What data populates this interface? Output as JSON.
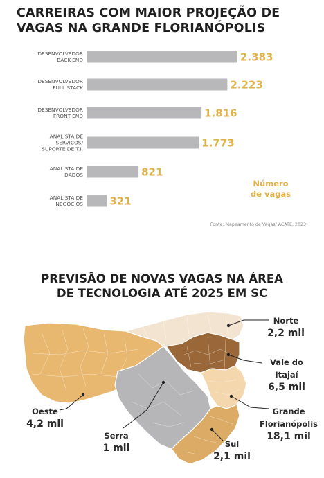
{
  "bar_chart": {
    "title_line1": "CARREIRAS COM MAIOR PROJEÇÃO DE",
    "title_line2": "VAGAS NA GRANDE FLORIANÓPOLIS",
    "legend_line1": "Número",
    "legend_line2": "de vagas",
    "source": "Fonte: Mapeamento de Vagas/ ACATE, 2023",
    "value_color": "#e0b24a",
    "bar_color": "#b8b8ba"
  },
  "map_chart": {
    "title_line1": "PREVISÃO DE NOVAS VAGAS NA ÁREA",
    "title_line2": "DE TECNOLOGIA ATÉ 2025 EM SC",
    "region_colors": {
      "Oeste": "#e8b870",
      "Serra": "#b6b6b8",
      "Norte": "#f3e4d2",
      "Vale do Itajaí": "#9a6838",
      "Grande Florianópolis": "#f4d7ad",
      "Sul": "#dcab65"
    }
  },
  "chart_data": [
    {
      "type": "bar",
      "orientation": "horizontal",
      "title": "CARREIRAS COM MAIOR PROJEÇÃO DE VAGAS NA GRANDE FLORIANÓPOLIS",
      "categories": [
        [
          "DESENVOLVEDOR",
          "BACK-END"
        ],
        [
          "DESENVOLVEDOR",
          "FULL STACK"
        ],
        [
          "DESENVOLVEDOR",
          "FRONT-END"
        ],
        [
          "ANALISTA DE",
          "SERVIÇOS/",
          "SUPORTE DE T.I."
        ],
        [
          "ANALISTA DE",
          "DADOS"
        ],
        [
          "ANALISTA DE",
          "NEGÓCIOS"
        ]
      ],
      "values": [
        2383,
        2223,
        1816,
        1773,
        821,
        321
      ],
      "value_labels": [
        "2.383",
        "2.223",
        "1.816",
        "1.773",
        "821",
        "321"
      ],
      "legend": "Número de vagas"
    },
    {
      "type": "table",
      "title": "PREVISÃO DE NOVAS VAGAS NA ÁREA DE TECNOLOGIA ATÉ 2025 EM SC",
      "regions": [
        {
          "name": "Norte",
          "value": "2,2 mil"
        },
        {
          "name": "Vale do Itajaí",
          "name_lines": [
            "Vale do",
            "Itajaí"
          ],
          "value": "6,5 mil"
        },
        {
          "name": "Grande Florianópolis",
          "name_lines": [
            "Grande",
            "Florianópolis"
          ],
          "value": "18,1 mil"
        },
        {
          "name": "Sul",
          "value": "2,1 mil"
        },
        {
          "name": "Serra",
          "value": "1 mil"
        },
        {
          "name": "Oeste",
          "value": "4,2 mil"
        }
      ]
    }
  ]
}
